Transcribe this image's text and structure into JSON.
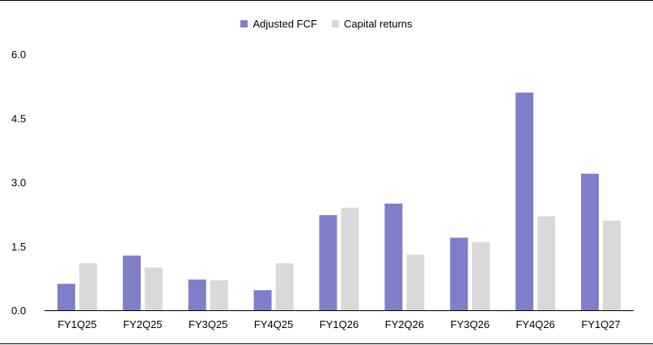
{
  "chart_data": {
    "type": "bar",
    "title": "",
    "xlabel": "",
    "ylabel": "",
    "categories": [
      "FY1Q25",
      "FY2Q25",
      "FY3Q25",
      "FY4Q25",
      "FY1Q26",
      "FY2Q26",
      "FY3Q26",
      "FY4Q26",
      "FY1Q27"
    ],
    "series": [
      {
        "name": "Adjusted FCF",
        "color": "#7f7fc9",
        "values": [
          0.62,
          1.28,
          0.72,
          0.47,
          2.23,
          2.5,
          1.7,
          5.1,
          3.2
        ]
      },
      {
        "name": "Capital returns",
        "color": "#d9d9d9",
        "values": [
          1.1,
          1.0,
          0.7,
          1.1,
          2.4,
          1.3,
          1.6,
          2.2,
          2.1
        ]
      }
    ],
    "ylim": [
      0,
      6
    ],
    "yticks": [
      "0.0",
      "1.5",
      "3.0",
      "4.5",
      "6.0"
    ],
    "grid": false,
    "legend_position": "top-center"
  }
}
